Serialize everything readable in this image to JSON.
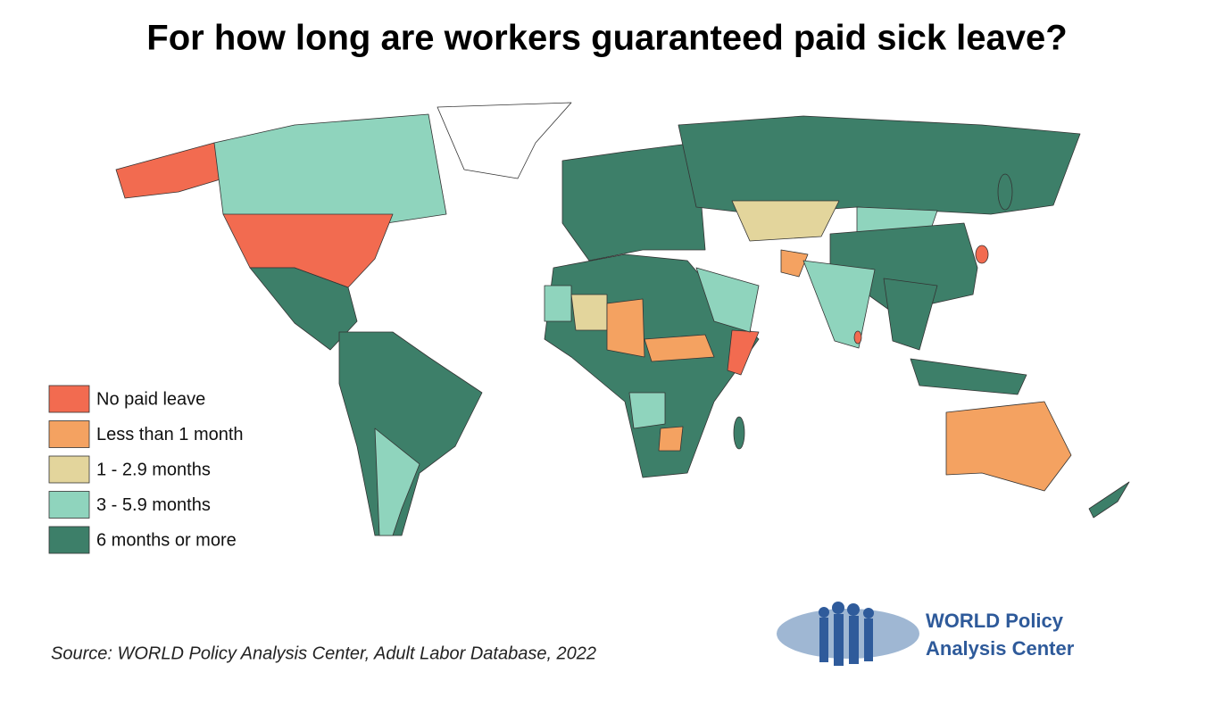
{
  "title": "For how long are workers guaranteed paid sick leave?",
  "legend": [
    {
      "label": "No paid leave",
      "color": "#f26b50"
    },
    {
      "label": "Less than 1 month",
      "color": "#f4a261"
    },
    {
      "label": "1 - 2.9 months",
      "color": "#e3d59c"
    },
    {
      "label": "3 - 5.9 months",
      "color": "#8fd4bd"
    },
    {
      "label": "6 months or more",
      "color": "#3d7f69"
    }
  ],
  "source": "Source: WORLD Policy Analysis Center, Adult Labor Database, 2022",
  "logo": {
    "line1": "WORLD Policy",
    "line2": "Analysis Center"
  }
}
